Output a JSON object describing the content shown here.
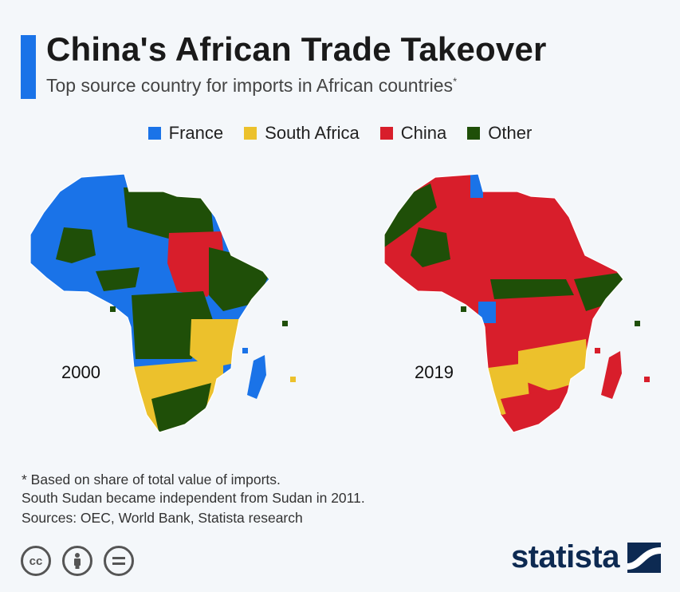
{
  "header": {
    "title": "China's African Trade Takeover",
    "subtitle": "Top source country for imports in African countries",
    "subtitle_marker": "*"
  },
  "legend": [
    {
      "label": "France",
      "color": "#1a73e8"
    },
    {
      "label": "South Africa",
      "color": "#ecc12c"
    },
    {
      "label": "China",
      "color": "#d81e2b"
    },
    {
      "label": "Other",
      "color": "#1f4f08"
    }
  ],
  "maps": [
    {
      "year": "2000"
    },
    {
      "year": "2019"
    }
  ],
  "footnotes": {
    "note1": "* Based on share of total value of imports.",
    "note2": "South Sudan became independent from Sudan in 2011.",
    "sources": "Sources: OEC, World Bank, Statista research"
  },
  "license_icons": [
    "cc-icon",
    "by-icon",
    "nd-icon"
  ],
  "brand": {
    "name": "statista"
  }
}
